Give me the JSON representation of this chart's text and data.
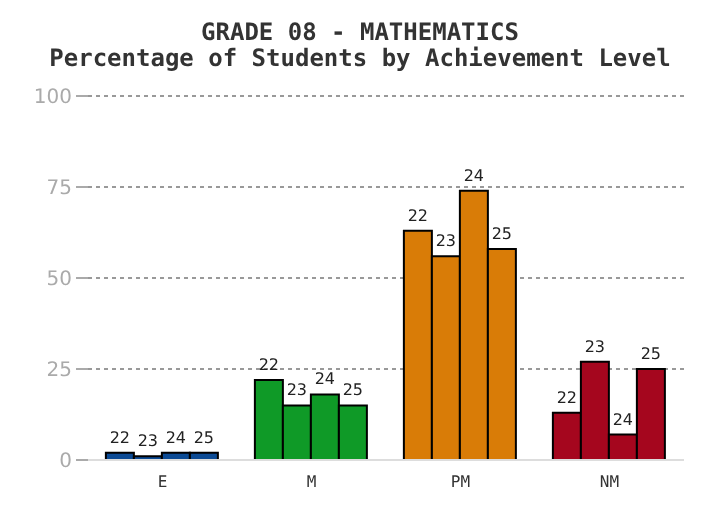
{
  "chart_data": {
    "type": "bar",
    "title": "GRADE 08 - MATHEMATICS",
    "subtitle": "Percentage of Students by Achievement Level",
    "categories": [
      "E",
      "M",
      "PM",
      "NM"
    ],
    "series": [
      {
        "name": "22",
        "colors": [
          "#0b4a94",
          "#0f9a27",
          "#d97c07",
          "#a5061e"
        ],
        "values": [
          2,
          22,
          63,
          13
        ]
      },
      {
        "name": "23",
        "colors": [
          "#0b4a94",
          "#0f9a27",
          "#d97c07",
          "#a5061e"
        ],
        "values": [
          1,
          15,
          56,
          27
        ]
      },
      {
        "name": "24",
        "colors": [
          "#0b4a94",
          "#0f9a27",
          "#d97c07",
          "#a5061e"
        ],
        "values": [
          2,
          18,
          74,
          7
        ]
      },
      {
        "name": "25",
        "colors": [
          "#0b4a94",
          "#0f9a27",
          "#d97c07",
          "#a5061e"
        ],
        "values": [
          2,
          15,
          58,
          25
        ]
      }
    ],
    "ylim": [
      0,
      100
    ],
    "yticks": [
      0,
      25,
      50,
      75,
      100
    ],
    "grid": "y",
    "legend": false
  }
}
